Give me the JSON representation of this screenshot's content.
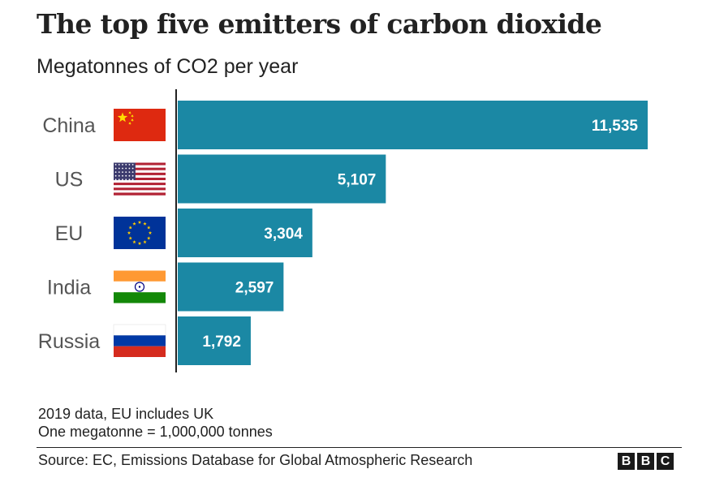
{
  "title": "The top five emitters of carbon dioxide",
  "subtitle": "Megatonnes of CO2 per year",
  "colors": {
    "bar": "#1b88a4",
    "bar_label": "#ffffff",
    "category_label": "#555555",
    "axis": "#222222"
  },
  "chart_data": {
    "type": "bar",
    "orientation": "horizontal",
    "categories": [
      "China",
      "US",
      "EU",
      "India",
      "Russia"
    ],
    "values": [
      11535,
      5107,
      3304,
      2597,
      1792
    ],
    "value_labels": [
      "11,535",
      "5,107",
      "3,304",
      "2,597",
      "1,792"
    ],
    "flags": [
      "china-flag-icon",
      "us-flag-icon",
      "eu-flag-icon",
      "india-flag-icon",
      "russia-flag-icon"
    ],
    "xlim": [
      0,
      11535
    ],
    "grid": false,
    "legend": "none"
  },
  "notes": [
    "2019 data, EU includes UK",
    "One megatonne = 1,000,000 tonnes"
  ],
  "source": "Source: EC, Emissions Database for Global Atmospheric Research",
  "logo": [
    "B",
    "B",
    "C"
  ]
}
